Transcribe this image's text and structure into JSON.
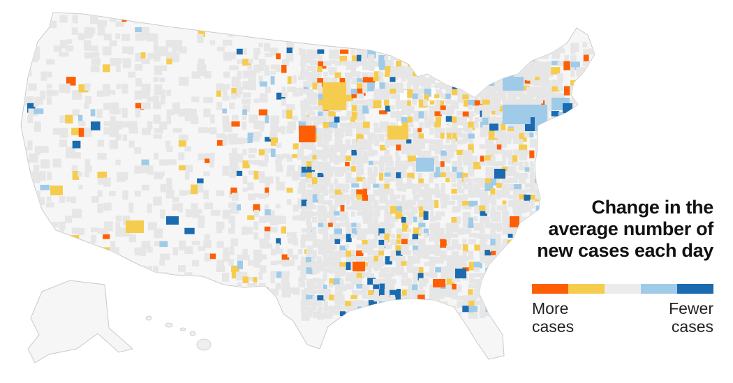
{
  "legend": {
    "title_lines": [
      "Change in the",
      "average number of",
      "new cases each day"
    ],
    "more_label": "More cases",
    "fewer_label": "Fewer cases",
    "bins": [
      {
        "name": "much-more",
        "color": "#fe5f04"
      },
      {
        "name": "more",
        "color": "#f6cc4e"
      },
      {
        "name": "same",
        "color": "#ececec"
      },
      {
        "name": "fewer",
        "color": "#9fcbe9"
      },
      {
        "name": "much-fewer",
        "color": "#1a6bb0"
      }
    ]
  },
  "colors": {
    "land": "#f5f5f5",
    "grey_county": "#e6e6e6",
    "border": "#c8c8c8",
    "much_more": "#fe5f04",
    "more": "#f6cc4e",
    "fewer": "#9fcbe9",
    "much_fewer": "#1a6bb0"
  }
}
